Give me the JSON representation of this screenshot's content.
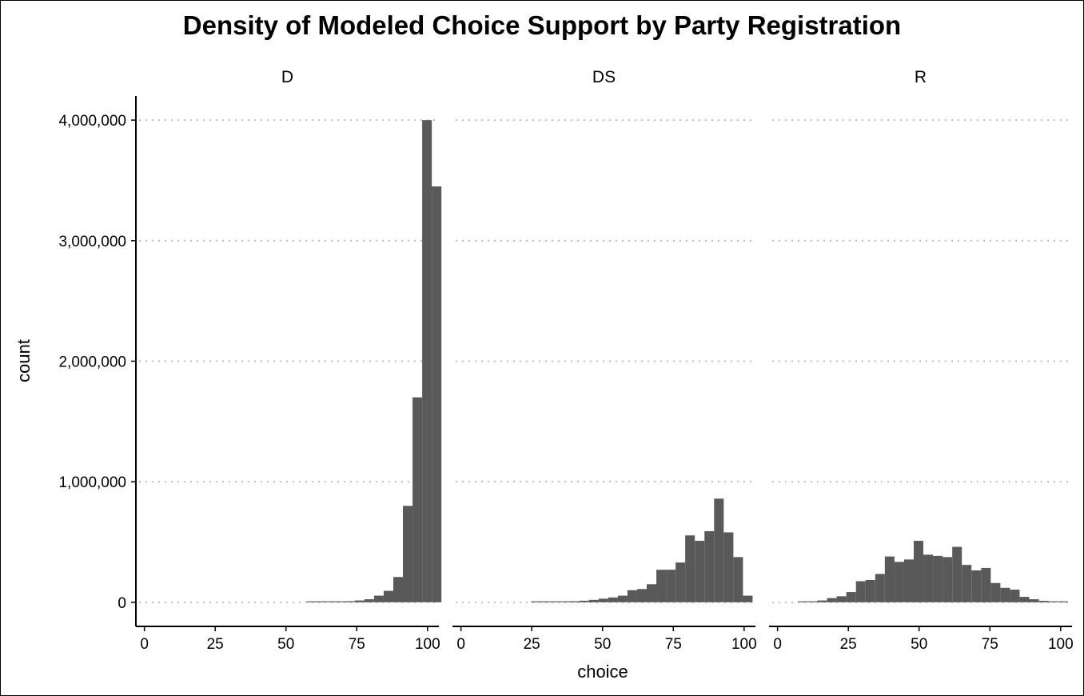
{
  "chart_data": {
    "type": "bar",
    "subtype": "faceted-histogram",
    "title": "Density of Modeled Choice Support by Party Registration",
    "xlabel": "choice",
    "ylabel": "count",
    "xlim": [
      -3,
      104
    ],
    "ylim": [
      -200000,
      4200000
    ],
    "x_ticks": [
      0,
      25,
      50,
      75,
      100
    ],
    "x_tick_labels": [
      "0",
      "25",
      "50",
      "75",
      "100"
    ],
    "y_ticks": [
      0,
      1000000,
      2000000,
      3000000,
      4000000
    ],
    "y_tick_labels": [
      "0",
      "1,000,000",
      "2,000,000",
      "3,000,000",
      "4,000,000"
    ],
    "grid": "horizontal dotted",
    "legend": "none",
    "bar_color": "#595959",
    "bin_width": 3.4,
    "series": [
      {
        "name": "D",
        "bins": [
          {
            "x": 59.0,
            "count": 2000
          },
          {
            "x": 62.4,
            "count": 3000
          },
          {
            "x": 65.8,
            "count": 4000
          },
          {
            "x": 69.2,
            "count": 6000
          },
          {
            "x": 72.6,
            "count": 9000
          },
          {
            "x": 76.0,
            "count": 15000
          },
          {
            "x": 79.4,
            "count": 25000
          },
          {
            "x": 82.8,
            "count": 55000
          },
          {
            "x": 86.2,
            "count": 95000
          },
          {
            "x": 89.6,
            "count": 210000
          },
          {
            "x": 93.0,
            "count": 800000
          },
          {
            "x": 96.4,
            "count": 1700000
          },
          {
            "x": 99.8,
            "count": 4000000
          },
          {
            "x": 103.2,
            "count": 3450000
          }
        ]
      },
      {
        "name": "DS",
        "bins": [
          {
            "x": 26.5,
            "count": 2000
          },
          {
            "x": 29.9,
            "count": 3000
          },
          {
            "x": 33.3,
            "count": 5000
          },
          {
            "x": 36.7,
            "count": 6000
          },
          {
            "x": 40.1,
            "count": 9000
          },
          {
            "x": 43.5,
            "count": 13000
          },
          {
            "x": 46.9,
            "count": 20000
          },
          {
            "x": 50.3,
            "count": 30000
          },
          {
            "x": 53.7,
            "count": 40000
          },
          {
            "x": 57.1,
            "count": 55000
          },
          {
            "x": 60.5,
            "count": 100000
          },
          {
            "x": 63.9,
            "count": 110000
          },
          {
            "x": 67.3,
            "count": 150000
          },
          {
            "x": 70.7,
            "count": 270000
          },
          {
            "x": 74.1,
            "count": 270000
          },
          {
            "x": 77.5,
            "count": 330000
          },
          {
            "x": 80.9,
            "count": 555000
          },
          {
            "x": 84.3,
            "count": 510000
          },
          {
            "x": 87.7,
            "count": 590000
          },
          {
            "x": 91.1,
            "count": 860000
          },
          {
            "x": 94.5,
            "count": 580000
          },
          {
            "x": 97.9,
            "count": 375000
          },
          {
            "x": 101.3,
            "count": 55000
          }
        ]
      },
      {
        "name": "R",
        "bins": [
          {
            "x": 9.0,
            "count": 2000
          },
          {
            "x": 12.4,
            "count": 6000
          },
          {
            "x": 15.8,
            "count": 15000
          },
          {
            "x": 19.2,
            "count": 35000
          },
          {
            "x": 22.6,
            "count": 50000
          },
          {
            "x": 26.0,
            "count": 85000
          },
          {
            "x": 29.4,
            "count": 175000
          },
          {
            "x": 32.8,
            "count": 185000
          },
          {
            "x": 36.2,
            "count": 235000
          },
          {
            "x": 39.6,
            "count": 380000
          },
          {
            "x": 43.0,
            "count": 335000
          },
          {
            "x": 46.4,
            "count": 355000
          },
          {
            "x": 49.8,
            "count": 510000
          },
          {
            "x": 53.2,
            "count": 395000
          },
          {
            "x": 56.6,
            "count": 385000
          },
          {
            "x": 60.0,
            "count": 375000
          },
          {
            "x": 63.4,
            "count": 460000
          },
          {
            "x": 66.8,
            "count": 310000
          },
          {
            "x": 70.2,
            "count": 265000
          },
          {
            "x": 73.6,
            "count": 285000
          },
          {
            "x": 77.0,
            "count": 160000
          },
          {
            "x": 80.4,
            "count": 120000
          },
          {
            "x": 83.8,
            "count": 105000
          },
          {
            "x": 87.2,
            "count": 45000
          },
          {
            "x": 90.6,
            "count": 25000
          },
          {
            "x": 94.0,
            "count": 12000
          },
          {
            "x": 97.4,
            "count": 6000
          },
          {
            "x": 100.8,
            "count": 4000
          }
        ]
      }
    ]
  }
}
